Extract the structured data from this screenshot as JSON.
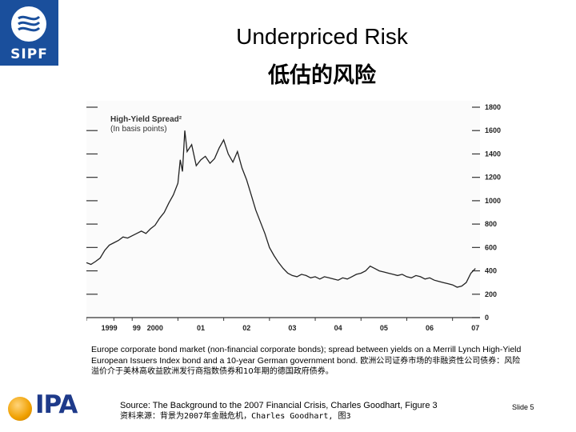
{
  "header": {
    "logo_text": "SIPF",
    "title_en": "Underpriced Risk",
    "title_zh": "低估的风险"
  },
  "chart_data": {
    "type": "line",
    "title": "High-Yield Spread²",
    "subtitle": "(In basis points)",
    "x_tick_labels": [
      "1999",
      "99",
      "2000",
      "01",
      "02",
      "03",
      "04",
      "05",
      "06",
      "07"
    ],
    "y_tick_labels": [
      "0",
      "200",
      "400",
      "600",
      "800",
      "1000",
      "1200",
      "1400",
      "1600",
      "1800"
    ],
    "ylim": [
      0,
      1800
    ],
    "xlim": [
      1999.0,
      2007.6
    ],
    "grid": false,
    "series": [
      {
        "color": "#222222",
        "points": [
          [
            1999.0,
            470
          ],
          [
            1999.1,
            455
          ],
          [
            1999.2,
            480
          ],
          [
            1999.3,
            510
          ],
          [
            1999.4,
            575
          ],
          [
            1999.5,
            620
          ],
          [
            1999.6,
            640
          ],
          [
            1999.7,
            660
          ],
          [
            1999.8,
            690
          ],
          [
            1999.9,
            680
          ],
          [
            2000.0,
            700
          ],
          [
            2000.1,
            720
          ],
          [
            2000.2,
            740
          ],
          [
            2000.3,
            720
          ],
          [
            2000.4,
            760
          ],
          [
            2000.5,
            790
          ],
          [
            2000.6,
            850
          ],
          [
            2000.7,
            900
          ],
          [
            2000.8,
            980
          ],
          [
            2000.9,
            1050
          ],
          [
            2001.0,
            1150
          ],
          [
            2001.05,
            1350
          ],
          [
            2001.1,
            1250
          ],
          [
            2001.15,
            1600
          ],
          [
            2001.2,
            1420
          ],
          [
            2001.3,
            1480
          ],
          [
            2001.4,
            1300
          ],
          [
            2001.5,
            1350
          ],
          [
            2001.6,
            1380
          ],
          [
            2001.7,
            1320
          ],
          [
            2001.8,
            1360
          ],
          [
            2001.9,
            1450
          ],
          [
            2002.0,
            1520
          ],
          [
            2002.1,
            1400
          ],
          [
            2002.2,
            1330
          ],
          [
            2002.3,
            1420
          ],
          [
            2002.4,
            1280
          ],
          [
            2002.5,
            1180
          ],
          [
            2002.6,
            1050
          ],
          [
            2002.7,
            920
          ],
          [
            2002.8,
            820
          ],
          [
            2002.9,
            720
          ],
          [
            2003.0,
            600
          ],
          [
            2003.1,
            530
          ],
          [
            2003.2,
            470
          ],
          [
            2003.3,
            420
          ],
          [
            2003.4,
            380
          ],
          [
            2003.5,
            360
          ],
          [
            2003.6,
            350
          ],
          [
            2003.7,
            370
          ],
          [
            2003.8,
            360
          ],
          [
            2003.9,
            340
          ],
          [
            2004.0,
            350
          ],
          [
            2004.1,
            330
          ],
          [
            2004.2,
            350
          ],
          [
            2004.3,
            340
          ],
          [
            2004.4,
            330
          ],
          [
            2004.5,
            320
          ],
          [
            2004.6,
            340
          ],
          [
            2004.7,
            330
          ],
          [
            2004.8,
            350
          ],
          [
            2004.9,
            370
          ],
          [
            2005.0,
            380
          ],
          [
            2005.1,
            400
          ],
          [
            2005.2,
            440
          ],
          [
            2005.3,
            420
          ],
          [
            2005.4,
            400
          ],
          [
            2005.5,
            390
          ],
          [
            2005.6,
            380
          ],
          [
            2005.7,
            370
          ],
          [
            2005.8,
            360
          ],
          [
            2005.9,
            370
          ],
          [
            2006.0,
            350
          ],
          [
            2006.1,
            340
          ],
          [
            2006.2,
            360
          ],
          [
            2006.3,
            350
          ],
          [
            2006.4,
            330
          ],
          [
            2006.5,
            340
          ],
          [
            2006.6,
            320
          ],
          [
            2006.7,
            310
          ],
          [
            2006.8,
            300
          ],
          [
            2006.9,
            290
          ],
          [
            2007.0,
            280
          ],
          [
            2007.1,
            260
          ],
          [
            2007.2,
            270
          ],
          [
            2007.3,
            300
          ],
          [
            2007.4,
            380
          ],
          [
            2007.5,
            420
          ]
        ]
      }
    ]
  },
  "caption": {
    "en": "Europe corporate bond market (non-financial corporate bonds); spread between yields on a Merrill Lynch High-Yield European Issuers Index bond and a 10-year German government bond.",
    "zh": "欧洲公司证券市场的非融资性公司债券：风险溢价介于美林高收益欧洲发行商指数债券和10年期的德国政府债券。"
  },
  "source": {
    "en": "Source: The Background to the 2007 Financial Crisis, Charles Goodhart, Figure 3",
    "zh": "资料来源：背景为2007年金融危机，Charles Goodhart, 图3"
  },
  "footer": {
    "logo_text": "IPA",
    "slide_label": "Slide 5"
  }
}
